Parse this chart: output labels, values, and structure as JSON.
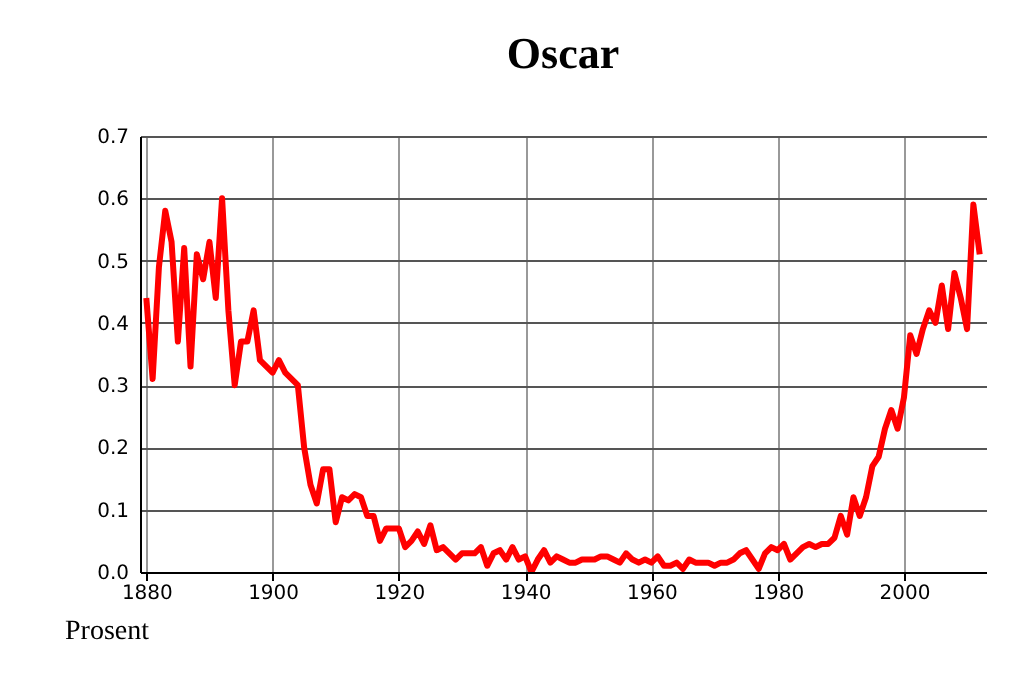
{
  "chart_data": {
    "type": "line",
    "title": "Oscar",
    "ylabel": "Prosent",
    "x": [
      1880,
      1881,
      1882,
      1883,
      1884,
      1885,
      1886,
      1887,
      1888,
      1889,
      1890,
      1891,
      1892,
      1893,
      1894,
      1895,
      1896,
      1897,
      1898,
      1899,
      1900,
      1901,
      1902,
      1903,
      1904,
      1905,
      1906,
      1907,
      1908,
      1909,
      1910,
      1911,
      1912,
      1913,
      1914,
      1915,
      1916,
      1917,
      1918,
      1919,
      1920,
      1921,
      1922,
      1923,
      1924,
      1925,
      1926,
      1927,
      1928,
      1929,
      1930,
      1931,
      1932,
      1933,
      1934,
      1935,
      1936,
      1937,
      1938,
      1939,
      1940,
      1941,
      1942,
      1943,
      1944,
      1945,
      1946,
      1947,
      1948,
      1949,
      1950,
      1951,
      1952,
      1953,
      1954,
      1955,
      1956,
      1957,
      1958,
      1959,
      1960,
      1961,
      1962,
      1963,
      1964,
      1965,
      1966,
      1967,
      1968,
      1969,
      1970,
      1971,
      1972,
      1973,
      1974,
      1975,
      1976,
      1977,
      1978,
      1979,
      1980,
      1981,
      1982,
      1983,
      1984,
      1985,
      1986,
      1987,
      1988,
      1989,
      1990,
      1991,
      1992,
      1993,
      1994,
      1995,
      1996,
      1997,
      1998,
      1999,
      2000,
      2001,
      2002,
      2003,
      2004,
      2005,
      2006,
      2007,
      2008,
      2009,
      2010,
      2011,
      2012
    ],
    "series": [
      {
        "color": "#ff0000",
        "values": [
          0.44,
          0.31,
          0.49,
          0.58,
          0.53,
          0.37,
          0.52,
          0.33,
          0.51,
          0.47,
          0.53,
          0.44,
          0.6,
          0.42,
          0.3,
          0.37,
          0.37,
          0.42,
          0.34,
          0.33,
          0.32,
          0.34,
          0.32,
          0.31,
          0.3,
          0.2,
          0.14,
          0.11,
          0.165,
          0.165,
          0.08,
          0.12,
          0.115,
          0.125,
          0.12,
          0.09,
          0.09,
          0.05,
          0.07,
          0.07,
          0.07,
          0.04,
          0.05,
          0.065,
          0.045,
          0.075,
          0.035,
          0.04,
          0.03,
          0.02,
          0.03,
          0.03,
          0.03,
          0.04,
          0.01,
          0.03,
          0.035,
          0.02,
          0.04,
          0.02,
          0.025,
          0.0,
          0.02,
          0.035,
          0.015,
          0.025,
          0.02,
          0.015,
          0.015,
          0.02,
          0.02,
          0.02,
          0.025,
          0.025,
          0.02,
          0.015,
          0.03,
          0.02,
          0.015,
          0.02,
          0.015,
          0.025,
          0.01,
          0.01,
          0.015,
          0.005,
          0.02,
          0.015,
          0.015,
          0.015,
          0.01,
          0.015,
          0.015,
          0.02,
          0.03,
          0.035,
          0.02,
          0.005,
          0.03,
          0.04,
          0.035,
          0.045,
          0.02,
          0.03,
          0.04,
          0.045,
          0.04,
          0.045,
          0.045,
          0.055,
          0.09,
          0.06,
          0.12,
          0.09,
          0.12,
          0.17,
          0.185,
          0.23,
          0.26,
          0.23,
          0.28,
          0.38,
          0.35,
          0.39,
          0.42,
          0.4,
          0.46,
          0.39,
          0.48,
          0.44,
          0.39,
          0.59,
          0.51
        ]
      }
    ],
    "xlim": [
      1879,
      2013
    ],
    "ylim": [
      0,
      0.7
    ],
    "xticks": [
      1880,
      1900,
      1920,
      1940,
      1960,
      1980,
      2000
    ],
    "yticks": [
      {
        "value": 0,
        "label": "0.0"
      },
      {
        "value": 0.1,
        "label": "0.1"
      },
      {
        "value": 0.2,
        "label": "0.2"
      },
      {
        "value": 0.3,
        "label": "0.3"
      },
      {
        "value": 0.4,
        "label": "0.4"
      },
      {
        "value": 0.5,
        "label": "0.5"
      },
      {
        "value": 0.6,
        "label": "0.6"
      },
      {
        "value": 0.7,
        "label": "0.7"
      }
    ],
    "grid": true
  }
}
